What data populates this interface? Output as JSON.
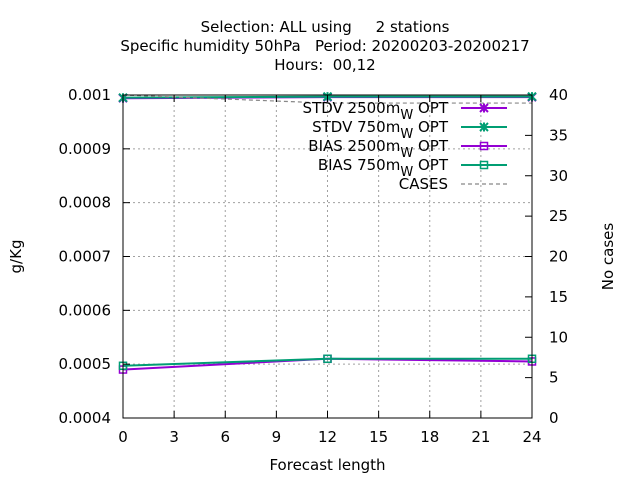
{
  "chart_data": {
    "type": "line",
    "title_lines": [
      "Selection: ALL using     2 stations",
      "Specific humidity 50hPa   Period: 20200203-20200217",
      "Hours:  00,12"
    ],
    "xlabel": "Forecast length",
    "ylabel": "g/Kg",
    "y2label": "No cases",
    "x_ticks": [
      "0",
      "3",
      "6",
      "9",
      "12",
      "15",
      "18",
      "21",
      "24"
    ],
    "y_ticks": [
      "0.0004",
      "0.0005",
      "0.0006",
      "0.0007",
      "0.0008",
      "0.0009",
      "0.001"
    ],
    "y2_ticks": [
      "0",
      "5",
      "10",
      "15",
      "20",
      "25",
      "30",
      "35",
      "40"
    ],
    "xlim": [
      0,
      24
    ],
    "ylim": [
      0.0004,
      0.001
    ],
    "y2lim": [
      0,
      40
    ],
    "grid": true,
    "legend_position": "top-right",
    "series": [
      {
        "name": "STDV 2500m",
        "subscript": "W",
        "suffix": " OPT",
        "color": "#9400d3",
        "marker": "x",
        "axis": "y",
        "x": [
          0,
          12,
          24
        ],
        "y": [
          0.000994,
          0.000996,
          0.000996
        ]
      },
      {
        "name": "STDV 750m",
        "subscript": "W",
        "suffix": " OPT",
        "color": "#009e73",
        "marker": "x",
        "axis": "y",
        "x": [
          0,
          12,
          24
        ],
        "y": [
          0.000995,
          0.000997,
          0.000997
        ]
      },
      {
        "name": "BIAS 2500m",
        "subscript": "W",
        "suffix": " OPT",
        "color": "#9400d3",
        "marker": "square",
        "axis": "y",
        "x": [
          0,
          12,
          24
        ],
        "y": [
          0.00049,
          0.00051,
          0.000505
        ]
      },
      {
        "name": "BIAS 750m",
        "subscript": "W",
        "suffix": " OPT",
        "color": "#009e73",
        "marker": "square",
        "axis": "y",
        "x": [
          0,
          12,
          24
        ],
        "y": [
          0.000497,
          0.00051,
          0.00051
        ]
      },
      {
        "name": "CASES",
        "subscript": "",
        "suffix": "",
        "color": "#888888",
        "marker": "none",
        "axis": "y2",
        "dashed": true,
        "x": [
          0,
          12,
          24
        ],
        "y": [
          40,
          39,
          39
        ]
      }
    ]
  }
}
